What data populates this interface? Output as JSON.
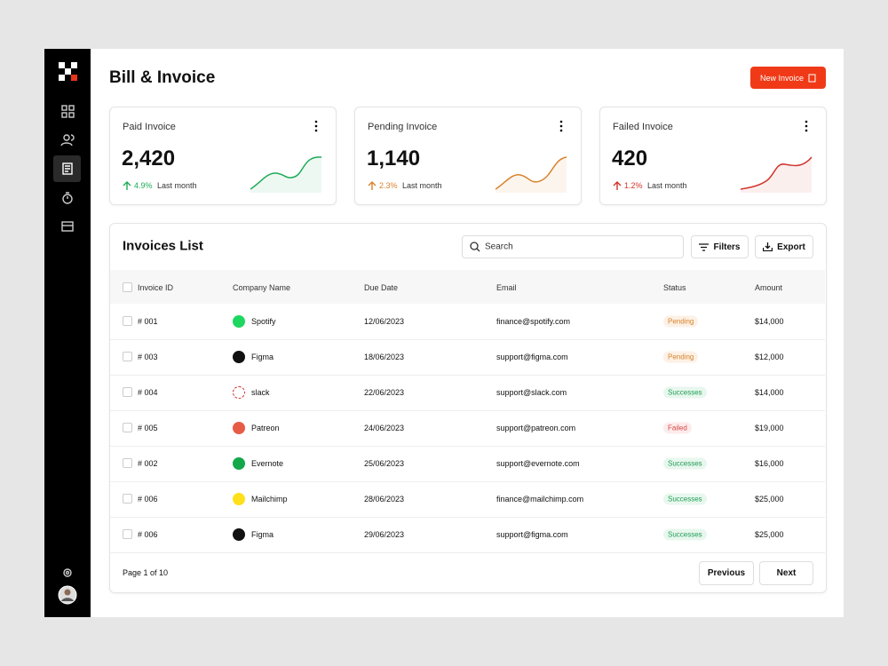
{
  "header": {
    "title": "Bill & Invoice",
    "new_invoice": "New Invoice"
  },
  "stats": [
    {
      "label": "Paid Invoice",
      "value": "2,420",
      "change": "4.9%",
      "period": "Last month"
    },
    {
      "label": "Pending Invoice",
      "value": "1,140",
      "change": "2.3%",
      "period": "Last month"
    },
    {
      "label": "Failed Invoice",
      "value": "420",
      "change": "1.2%",
      "period": "Last month"
    }
  ],
  "list": {
    "title": "Invoices List",
    "search": "Search",
    "filters": "Filters",
    "export": "Export",
    "columns": [
      "Invoice ID",
      "Company Name",
      "Due Date",
      "Email",
      "Status",
      "Amount"
    ],
    "rows": [
      [
        "# 001",
        "Spotify",
        "12/06/2023",
        "finance@spotify.com",
        "Pending",
        "$14,000"
      ],
      [
        "# 003",
        "Figma",
        "18/06/2023",
        "support@figma.com",
        "Pending",
        "$12,000"
      ],
      [
        "# 004",
        "slack",
        "22/06/2023",
        "support@slack.com",
        "Successes",
        "$14,000"
      ],
      [
        "# 005",
        "Patreon",
        "24/06/2023",
        "support@patreon.com",
        "Failed",
        "$19,000"
      ],
      [
        "# 002",
        "Evernote",
        "25/06/2023",
        "support@evernote.com",
        "Successes",
        "$16,000"
      ],
      [
        "# 006",
        "Mailchimp",
        "28/06/2023",
        "finance@mailchimp.com",
        "Successes",
        "$25,000"
      ],
      [
        "# 006",
        "Figma",
        "29/06/2023",
        "support@figma.com",
        "Successes",
        "$25,000"
      ]
    ],
    "page": "Page 1 of 10",
    "previous": "Previous",
    "next": "Next"
  }
}
